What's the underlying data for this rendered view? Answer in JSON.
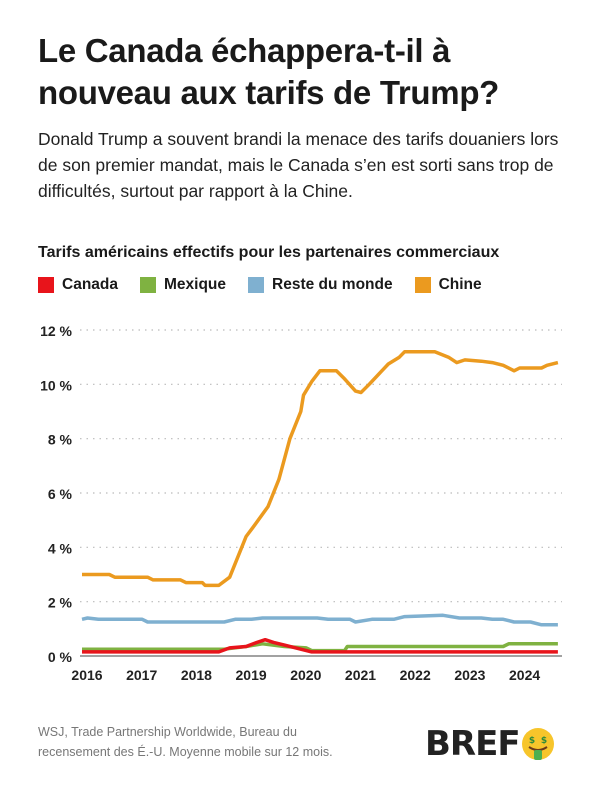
{
  "header": {
    "title": "Le Canada échappera-t-il à nouveau aux tarifs de Trump?",
    "subtitle": "Donald Trump a souvent brandi la menace des tarifs douaniers lors de son premier mandat, mais le Canada s’en est sorti sans trop de difficultés, surtout par rapport à la Chine."
  },
  "chart_data": {
    "type": "line",
    "title": "Tarifs américains effectifs pour les partenaires commerciaux",
    "xlabel": "",
    "ylabel": "",
    "xlim": [
      2016,
      2024.7
    ],
    "ylim": [
      0,
      12
    ],
    "x_ticks": [
      "2016",
      "2017",
      "2018",
      "2019",
      "2020",
      "2021",
      "2022",
      "2023",
      "2024"
    ],
    "y_ticks": [
      "0 %",
      "2 %",
      "4 %",
      "6 %",
      "8 %",
      "10 %",
      "12 %"
    ],
    "grid": "horizontal dotted",
    "legend_position": "top",
    "series": [
      {
        "name": "Canada",
        "color": "#e8141b",
        "points": [
          [
            2016,
            0.15
          ],
          [
            2018.5,
            0.15
          ],
          [
            2018.7,
            0.3
          ],
          [
            2019.0,
            0.35
          ],
          [
            2019.2,
            0.5
          ],
          [
            2019.35,
            0.6
          ],
          [
            2019.5,
            0.5
          ],
          [
            2019.7,
            0.4
          ],
          [
            2020.0,
            0.25
          ],
          [
            2020.2,
            0.15
          ],
          [
            2024.7,
            0.15
          ]
        ]
      },
      {
        "name": "Mexique",
        "color": "#7fb241",
        "points": [
          [
            2016,
            0.25
          ],
          [
            2018.6,
            0.25
          ],
          [
            2019.0,
            0.35
          ],
          [
            2019.3,
            0.45
          ],
          [
            2019.7,
            0.35
          ],
          [
            2020.1,
            0.3
          ],
          [
            2020.2,
            0.2
          ],
          [
            2020.8,
            0.2
          ],
          [
            2020.85,
            0.35
          ],
          [
            2023.7,
            0.35
          ],
          [
            2023.8,
            0.45
          ],
          [
            2024.7,
            0.45
          ]
        ]
      },
      {
        "name": "Reste du monde",
        "color": "#7fb0d0",
        "points": [
          [
            2016,
            1.35
          ],
          [
            2016.1,
            1.4
          ],
          [
            2016.3,
            1.35
          ],
          [
            2017.1,
            1.35
          ],
          [
            2017.2,
            1.25
          ],
          [
            2018.6,
            1.25
          ],
          [
            2018.8,
            1.35
          ],
          [
            2019.1,
            1.35
          ],
          [
            2019.3,
            1.4
          ],
          [
            2020.3,
            1.4
          ],
          [
            2020.5,
            1.35
          ],
          [
            2020.9,
            1.35
          ],
          [
            2021.0,
            1.25
          ],
          [
            2021.3,
            1.35
          ],
          [
            2021.7,
            1.35
          ],
          [
            2021.9,
            1.45
          ],
          [
            2022.6,
            1.5
          ],
          [
            2022.9,
            1.4
          ],
          [
            2023.3,
            1.4
          ],
          [
            2023.5,
            1.35
          ],
          [
            2023.7,
            1.35
          ],
          [
            2023.9,
            1.25
          ],
          [
            2024.2,
            1.25
          ],
          [
            2024.4,
            1.15
          ],
          [
            2024.7,
            1.15
          ]
        ]
      },
      {
        "name": "Chine",
        "color": "#eb9a1f",
        "points": [
          [
            2016,
            3.0
          ],
          [
            2016.5,
            3.0
          ],
          [
            2016.6,
            2.9
          ],
          [
            2017.2,
            2.9
          ],
          [
            2017.3,
            2.8
          ],
          [
            2017.8,
            2.8
          ],
          [
            2017.9,
            2.7
          ],
          [
            2018.2,
            2.7
          ],
          [
            2018.25,
            2.6
          ],
          [
            2018.5,
            2.6
          ],
          [
            2018.7,
            2.9
          ],
          [
            2019.0,
            4.4
          ],
          [
            2019.15,
            4.8
          ],
          [
            2019.4,
            5.5
          ],
          [
            2019.6,
            6.5
          ],
          [
            2019.8,
            8.0
          ],
          [
            2020.0,
            9.0
          ],
          [
            2020.05,
            9.6
          ],
          [
            2020.2,
            10.1
          ],
          [
            2020.35,
            10.5
          ],
          [
            2020.65,
            10.5
          ],
          [
            2020.8,
            10.2
          ],
          [
            2021.0,
            9.75
          ],
          [
            2021.1,
            9.7
          ],
          [
            2021.25,
            10.0
          ],
          [
            2021.6,
            10.75
          ],
          [
            2021.8,
            11.0
          ],
          [
            2021.9,
            11.2
          ],
          [
            2022.45,
            11.2
          ],
          [
            2022.7,
            11.0
          ],
          [
            2022.85,
            10.8
          ],
          [
            2023.0,
            10.9
          ],
          [
            2023.3,
            10.85
          ],
          [
            2023.5,
            10.8
          ],
          [
            2023.7,
            10.7
          ],
          [
            2023.9,
            10.5
          ],
          [
            2024.0,
            10.6
          ],
          [
            2024.4,
            10.6
          ],
          [
            2024.5,
            10.7
          ],
          [
            2024.7,
            10.8
          ]
        ]
      }
    ]
  },
  "footer": {
    "source": "WSJ, Trade Partnership Worldwide, Bureau du recensement des É.-U. Moyenne mobile sur 12 mois.",
    "logo": "BREF",
    "logo_icon": "money-mouth-face-emoji"
  }
}
